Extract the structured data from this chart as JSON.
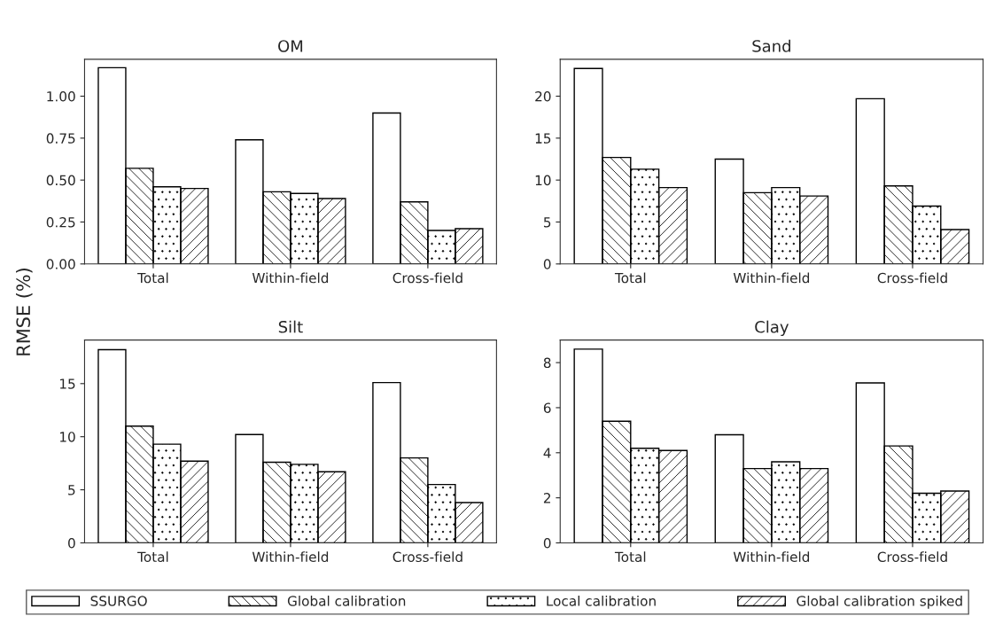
{
  "chart_data": [
    {
      "type": "bar",
      "title": "OM",
      "ylabel": "RMSE (%)",
      "categories": [
        "Total",
        "Within-field",
        "Cross-field"
      ],
      "ylim": [
        0,
        1.22
      ],
      "yticks": [
        {
          "value": 0,
          "label": "0.00"
        },
        {
          "value": 0.25,
          "label": "0.25"
        },
        {
          "value": 0.5,
          "label": "0.50"
        },
        {
          "value": 0.75,
          "label": "0.75"
        },
        {
          "value": 1,
          "label": "1.00"
        }
      ],
      "legend": "bottom",
      "series": [
        {
          "name": "SSURGO",
          "color": "#ffffff",
          "values": [
            1.17,
            0.74,
            0.9
          ]
        },
        {
          "name": "Global calibration",
          "color": "#000000",
          "values": [
            0.57,
            0.43,
            0.37
          ]
        },
        {
          "name": "Local calibration",
          "color": "#000000",
          "values": [
            0.46,
            0.42,
            0.2
          ]
        },
        {
          "name": "Global calibration spiked",
          "color": "#000000",
          "values": [
            0.45,
            0.39,
            0.21
          ]
        }
      ]
    },
    {
      "type": "bar",
      "title": "Sand",
      "categories": [
        "Total",
        "Within-field",
        "Cross-field"
      ],
      "ylim": [
        0,
        24.4
      ],
      "yticks": [
        0,
        5,
        10,
        15,
        20
      ],
      "series": [
        {
          "color": "#ffffff",
          "values": [
            23.3,
            12.5,
            19.7
          ]
        },
        {
          "color": "#000000",
          "values": [
            12.7,
            8.5,
            9.3
          ]
        },
        {
          "color": "#000000",
          "values": [
            11.3,
            9.1,
            6.9
          ]
        },
        {
          "color": "#000000",
          "values": [
            9.1,
            8.1,
            4.1
          ]
        }
      ]
    },
    {
      "type": "bar",
      "title": "Silt",
      "categories": [
        "Total",
        "Within-field",
        "Cross-field"
      ],
      "ylim": [
        0,
        19.1
      ],
      "yticks": [
        0,
        5,
        10,
        15
      ],
      "series": [
        {
          "color": "#ffffff",
          "values": [
            18.2,
            10.2,
            15.1
          ]
        },
        {
          "color": "#000000",
          "values": [
            11.0,
            7.6,
            8.0
          ]
        },
        {
          "color": "#000000",
          "values": [
            9.3,
            7.4,
            5.5
          ]
        },
        {
          "color": "#000000",
          "values": [
            7.7,
            6.7,
            3.8
          ]
        }
      ]
    },
    {
      "type": "bar",
      "title": "Clay",
      "categories": [
        "Total",
        "Within-field",
        "Cross-field"
      ],
      "ylim": [
        0,
        9.0
      ],
      "yticks": [
        0,
        2,
        4,
        6,
        8
      ],
      "series": [
        {
          "color": "#ffffff",
          "values": [
            8.6,
            4.8,
            7.1
          ]
        },
        {
          "color": "#000000",
          "values": [
            5.4,
            3.3,
            4.3
          ]
        },
        {
          "color": "#000000",
          "values": [
            4.2,
            3.6,
            2.2
          ]
        },
        {
          "color": "#000000",
          "values": [
            4.1,
            3.3,
            2.3
          ]
        }
      ]
    }
  ]
}
